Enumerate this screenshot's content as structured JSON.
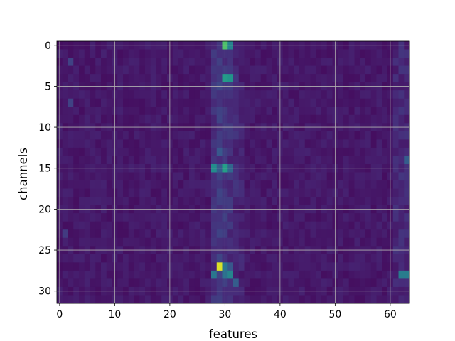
{
  "chart_data": {
    "type": "heatmap",
    "title": "",
    "xlabel": "features",
    "ylabel": "channels",
    "x_range": [
      -0.5,
      63.5
    ],
    "y_range": [
      -0.5,
      31.5
    ],
    "y_inverted": true,
    "n_cols": 64,
    "n_rows": 32,
    "x_ticks": [
      0,
      10,
      20,
      30,
      40,
      50,
      60
    ],
    "y_ticks": [
      0,
      5,
      10,
      15,
      20,
      25,
      30
    ],
    "grid": true,
    "colormap": "viridis",
    "value_range": [
      0,
      1
    ],
    "base_level": 0.07,
    "hotspots": [
      {
        "row": 0,
        "col": 30,
        "value": 0.72
      },
      {
        "row": 0,
        "col": 31,
        "value": 0.45
      },
      {
        "row": 4,
        "col": 30,
        "value": 0.55
      },
      {
        "row": 4,
        "col": 31,
        "value": 0.52
      },
      {
        "row": 13,
        "col": 29,
        "value": 0.28
      },
      {
        "row": 15,
        "col": 28,
        "value": 0.48
      },
      {
        "row": 15,
        "col": 29,
        "value": 0.3
      },
      {
        "row": 15,
        "col": 30,
        "value": 0.56
      },
      {
        "row": 15,
        "col": 31,
        "value": 0.34
      },
      {
        "row": 27,
        "col": 29,
        "value": 0.95
      },
      {
        "row": 27,
        "col": 30,
        "value": 0.4
      },
      {
        "row": 27,
        "col": 31,
        "value": 0.28
      },
      {
        "row": 28,
        "col": 28,
        "value": 0.4
      },
      {
        "row": 28,
        "col": 30,
        "value": 0.38
      },
      {
        "row": 28,
        "col": 31,
        "value": 0.45
      },
      {
        "row": 29,
        "col": 32,
        "value": 0.3
      },
      {
        "row": 28,
        "col": 62,
        "value": 0.42
      },
      {
        "row": 28,
        "col": 63,
        "value": 0.42
      },
      {
        "row": 14,
        "col": 63,
        "value": 0.3
      },
      {
        "row": 2,
        "col": 2,
        "value": 0.2
      },
      {
        "row": 7,
        "col": 2,
        "value": 0.2
      },
      {
        "row": 23,
        "col": 1,
        "value": 0.18
      }
    ],
    "elevated_columns": [
      {
        "col": 28,
        "value": 0.14
      },
      {
        "col": 29,
        "value": 0.17
      },
      {
        "col": 30,
        "value": 0.16
      },
      {
        "col": 31,
        "value": 0.14
      },
      {
        "col": 32,
        "value": 0.12
      },
      {
        "col": 33,
        "value": 0.1
      },
      {
        "col": 61,
        "value": 0.11
      },
      {
        "col": 62,
        "value": 0.12
      },
      {
        "col": 63,
        "value": 0.11
      }
    ]
  }
}
